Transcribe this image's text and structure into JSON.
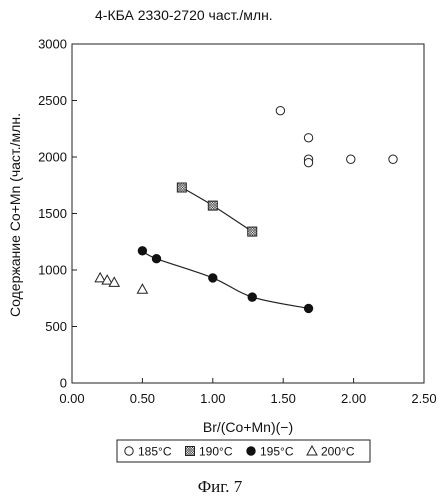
{
  "chart_data": {
    "type": "scatter",
    "title": "4-КБА 2330-2720 част./млн.",
    "xlabel": "Br/(Co+Mn)(−)",
    "ylabel": "Содержание Co+Mn (част./млн.",
    "xlim": [
      0,
      2.5
    ],
    "ylim": [
      0,
      3000
    ],
    "xticks": [
      "0.00",
      "0.50",
      "1.00",
      "1.50",
      "2.00",
      "2.50"
    ],
    "yticks": [
      "0",
      "500",
      "1000",
      "1500",
      "2000",
      "2500",
      "3000"
    ],
    "grid": false,
    "legend_position": "bottom",
    "series": [
      {
        "name": "185°C",
        "marker": "open-circle",
        "trendline": false,
        "points": [
          {
            "x": 1.48,
            "y": 2410
          },
          {
            "x": 1.68,
            "y": 2170
          },
          {
            "x": 1.68,
            "y": 1980
          },
          {
            "x": 1.68,
            "y": 1950
          },
          {
            "x": 1.98,
            "y": 1980
          },
          {
            "x": 2.28,
            "y": 1980
          }
        ]
      },
      {
        "name": "190°C",
        "marker": "hatched-square",
        "trendline": true,
        "points": [
          {
            "x": 0.78,
            "y": 1730
          },
          {
            "x": 1.0,
            "y": 1570
          },
          {
            "x": 1.28,
            "y": 1340
          }
        ]
      },
      {
        "name": "195°C",
        "marker": "filled-circle",
        "trendline": true,
        "points": [
          {
            "x": 0.5,
            "y": 1170
          },
          {
            "x": 0.6,
            "y": 1100
          },
          {
            "x": 1.0,
            "y": 930
          },
          {
            "x": 1.28,
            "y": 760
          },
          {
            "x": 1.68,
            "y": 660
          }
        ]
      },
      {
        "name": "200°C",
        "marker": "open-triangle",
        "trendline": false,
        "points": [
          {
            "x": 0.2,
            "y": 930
          },
          {
            "x": 0.25,
            "y": 910
          },
          {
            "x": 0.3,
            "y": 890
          },
          {
            "x": 0.5,
            "y": 830
          }
        ]
      }
    ]
  },
  "caption": "Фиг. 7"
}
